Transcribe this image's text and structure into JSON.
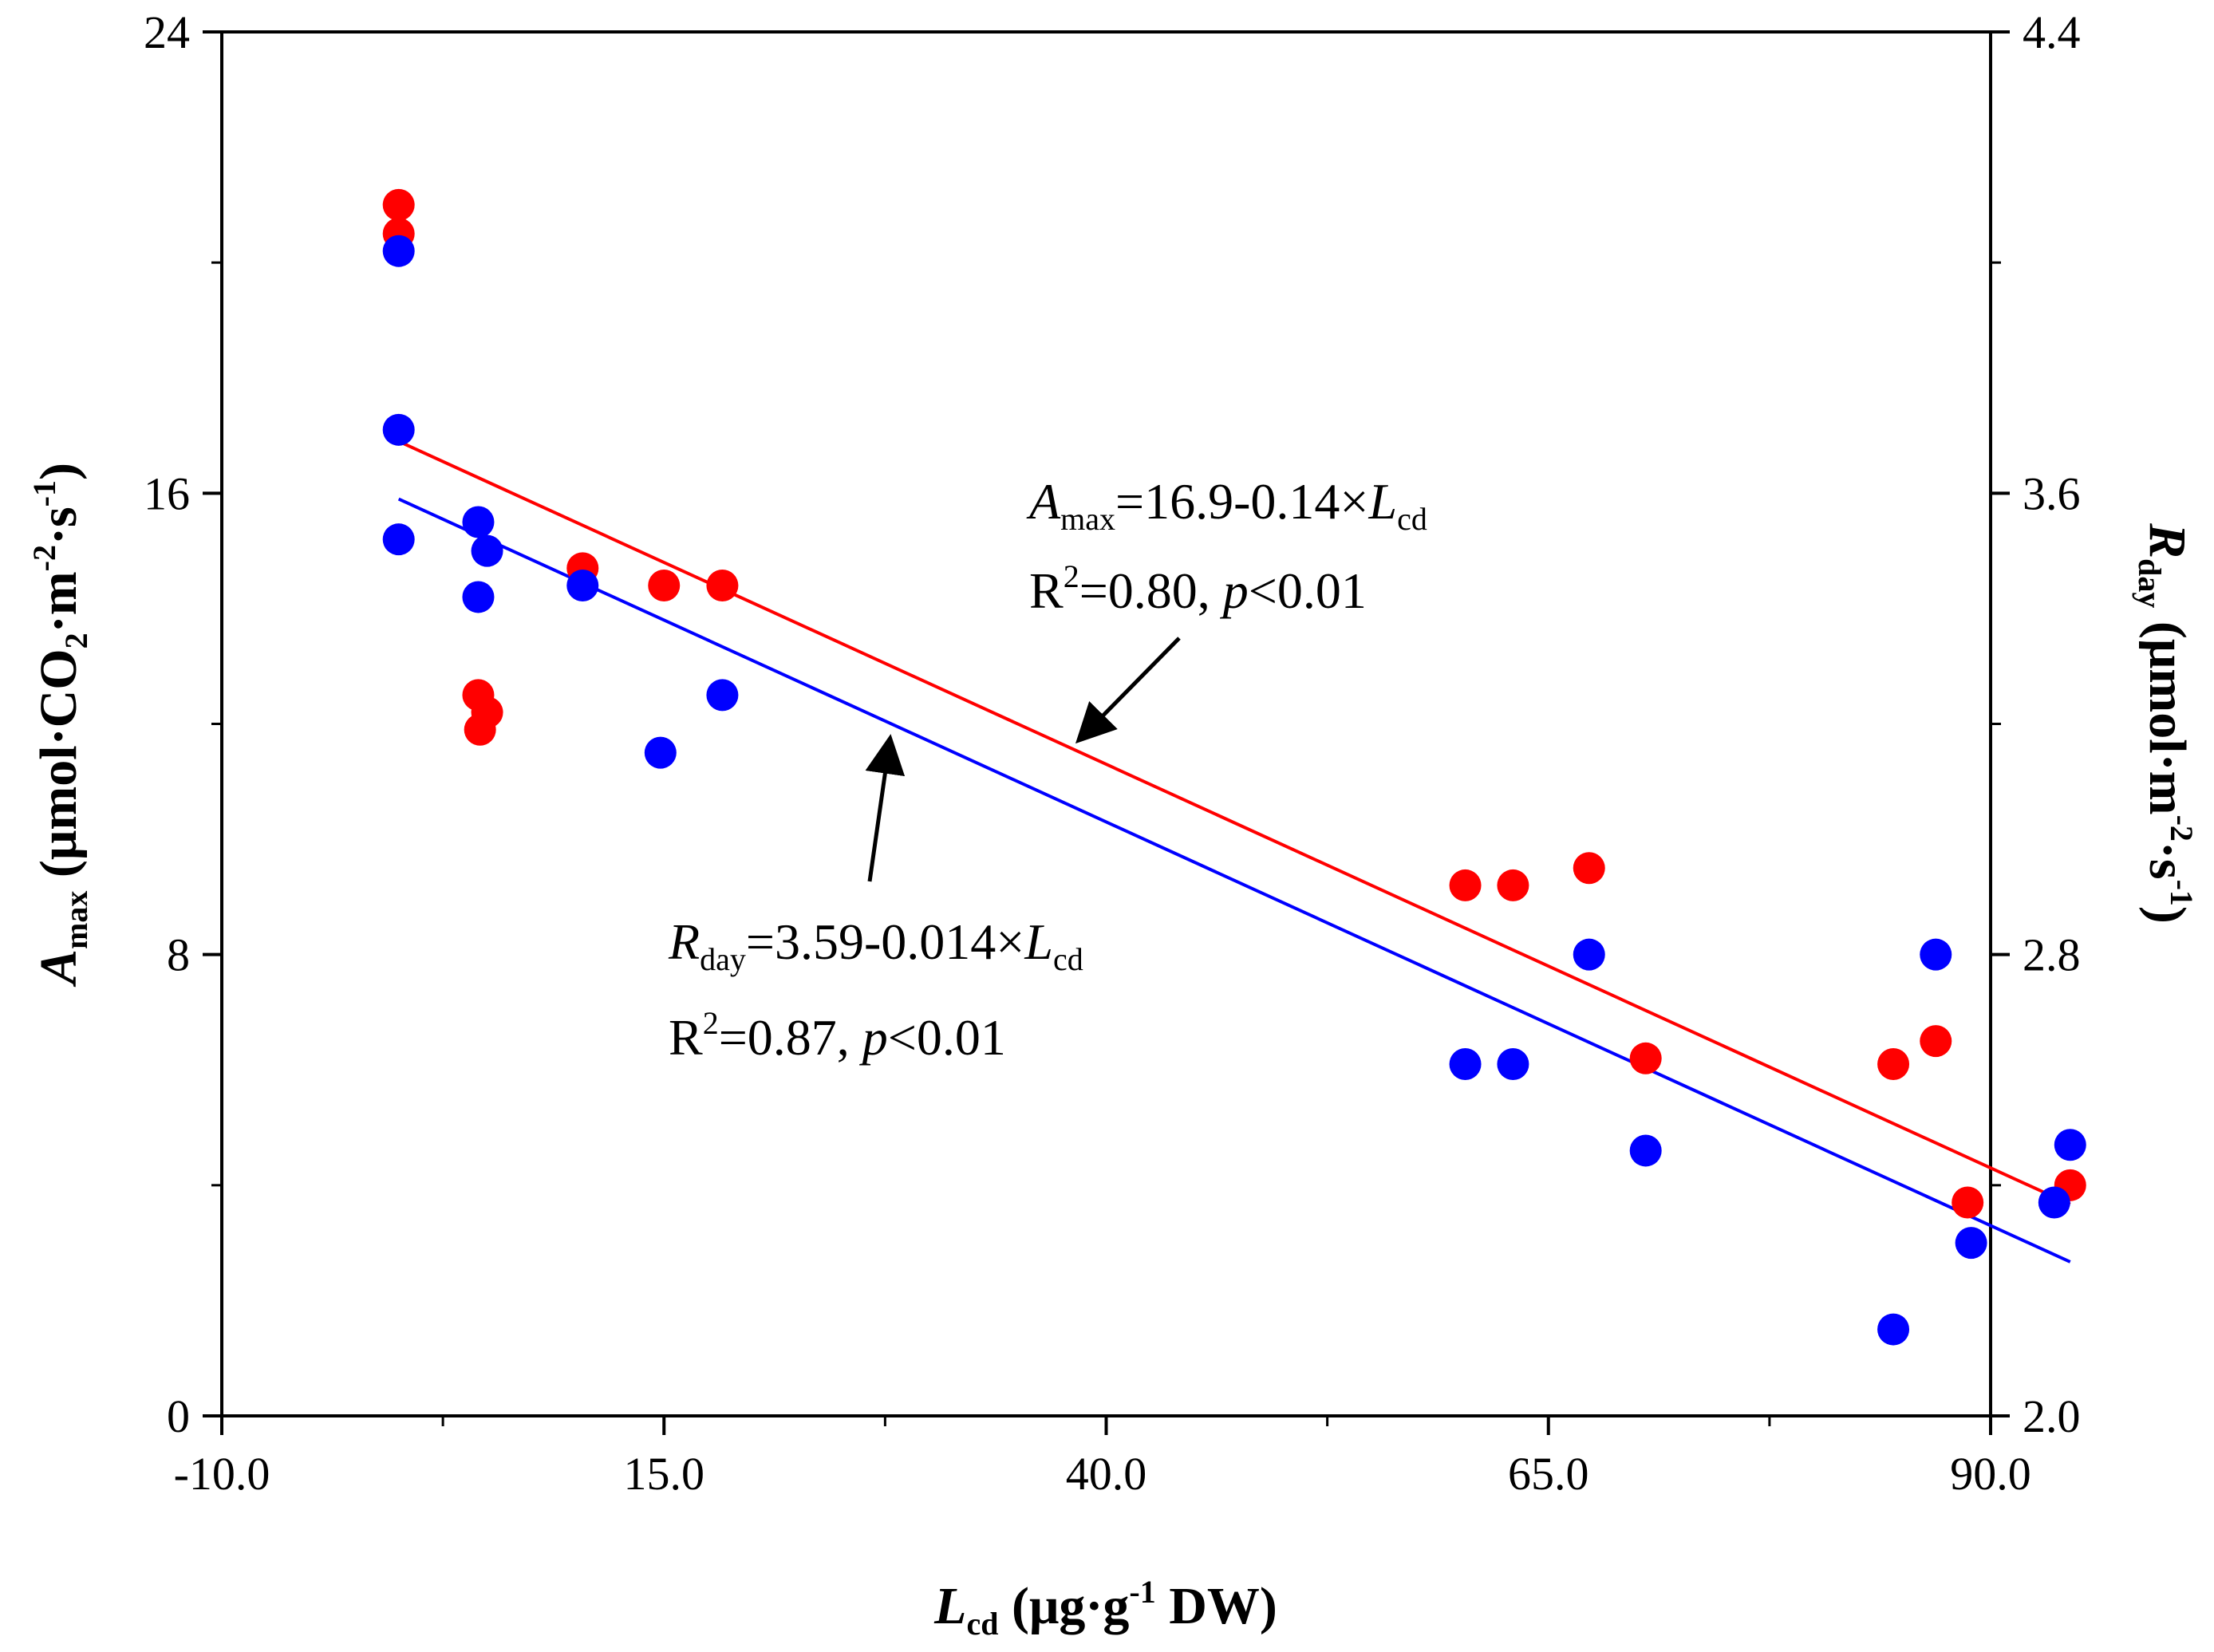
{
  "chart_data": {
    "type": "scatter",
    "x_axis": {
      "label_main": "L",
      "label_sub": "cd",
      "label_rest": "(μg·g",
      "label_sup": "-1",
      "label_end": "DW)",
      "range": [
        -10,
        90
      ],
      "ticks": [
        -10,
        15,
        40,
        65,
        90
      ],
      "tick_labels": [
        "-10.0",
        "15.0",
        "40.0",
        "65.0",
        "90.0"
      ]
    },
    "y_left": {
      "label_main": "A",
      "label_sub": "max",
      "label_rest1": "(μmol·CO",
      "label_sub2": "2",
      "label_rest2": "·m",
      "label_sup1": "-2",
      "label_rest3": "·s",
      "label_sup2": "-1",
      "label_end": ")",
      "range": [
        0,
        24
      ],
      "ticks": [
        0,
        8,
        16,
        24
      ],
      "tick_labels": [
        "0",
        "8",
        "16",
        "24"
      ]
    },
    "y_right": {
      "label_main": "R",
      "label_sub": "day",
      "label_rest1": "(μmol·m",
      "label_sup1": "-2",
      "label_rest2": "·s",
      "label_sup2": "-1",
      "label_end": ")",
      "range": [
        2.0,
        4.4
      ],
      "ticks": [
        2.0,
        2.8,
        3.6,
        4.4
      ],
      "tick_labels": [
        "2.0",
        "2.8",
        "3.6",
        "4.4"
      ]
    },
    "colors": {
      "amax": "#ff0000",
      "rday": "#0000ff",
      "axis": "#000000"
    },
    "series": [
      {
        "name": "Amax",
        "axis": "left",
        "color": "#ff0000",
        "x": [
          0,
          0,
          4.5,
          4.6,
          5,
          10.4,
          15,
          18.3,
          60.3,
          63,
          67.3,
          70.5,
          84.5,
          86.9,
          88.7,
          94.5
        ],
        "y": [
          21.0,
          20.5,
          12.5,
          11.9,
          12.2,
          14.7,
          14.4,
          14.4,
          9.2,
          9.2,
          9.5,
          6.2,
          6.1,
          6.5,
          3.7,
          4.0
        ]
      },
      {
        "name": "Rday",
        "axis": "right",
        "color": "#0000ff",
        "x": [
          0,
          0,
          0,
          4.5,
          4.5,
          5,
          10.4,
          14.8,
          18.3,
          60.3,
          63,
          67.3,
          70.5,
          84.5,
          86.9,
          88.9,
          93.6,
          94.5
        ],
        "y": [
          4.02,
          3.71,
          3.52,
          3.55,
          3.42,
          3.5,
          3.44,
          3.15,
          3.25,
          2.61,
          2.61,
          2.8,
          2.46,
          2.15,
          2.8,
          2.3,
          2.37,
          2.47
        ]
      }
    ],
    "fits": [
      {
        "name": "Amax fit",
        "axis": "left",
        "color": "#ff0000",
        "intercept": 16.9,
        "slope": -0.14,
        "x_range": [
          0,
          94.5
        ]
      },
      {
        "name": "Rday fit",
        "axis": "right",
        "color": "#0000ff",
        "intercept": 3.59,
        "slope": -0.014,
        "x_range": [
          0,
          94.5
        ]
      }
    ],
    "annotations": {
      "amax_eq": {
        "var": "A",
        "sub": "max",
        "eq": "=16.9-0.14×",
        "var2": "L",
        "sub2": "cd",
        "r2_pre": "R",
        "r2_sup": "2",
        "r2_mid": "=0.80, ",
        "p": "p",
        "r2_end": "<0.01"
      },
      "rday_eq": {
        "var": "R",
        "sub": "day",
        "eq": "=3.59-0.014×",
        "var2": "L",
        "sub2": "cd",
        "r2_pre": "R",
        "r2_sup": "2",
        "r2_mid": "=0.87, ",
        "p": "p",
        "r2_end": "<0.01"
      }
    }
  }
}
